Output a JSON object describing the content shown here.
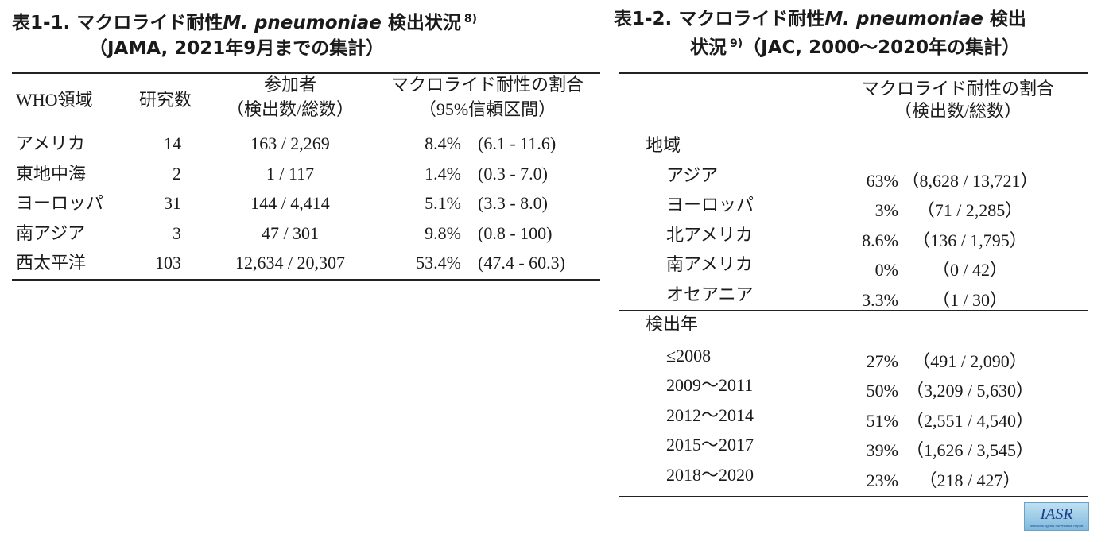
{
  "table1": {
    "title": {
      "label": "表1-1.",
      "text": "マクロライド耐性",
      "species": "M. pneumoniae",
      "text2": "検出状況",
      "ref": "8)",
      "source": "（JAMA, 2021年9月までの集計）"
    },
    "columns": [
      [
        "WHO領域"
      ],
      [
        "研究数"
      ],
      [
        "参加者",
        "（検出数/総数）"
      ],
      [
        "マクロライド耐性の割合",
        "（95%信頼区間）"
      ]
    ],
    "rows": [
      [
        "アメリカ",
        "14",
        "163 / 2,269",
        "8.4%",
        "(6.1 - 11.6)"
      ],
      [
        "東地中海",
        "2",
        "1 / 117",
        "1.4%",
        "(0.3 - 7.0)"
      ],
      [
        "ヨーロッパ",
        "31",
        "144 / 4,414",
        "5.1%",
        "(3.3 - 8.0)"
      ],
      [
        "南アジア",
        "3",
        "47 / 301",
        "9.8%",
        "(0.8 - 100)"
      ],
      [
        "西太平洋",
        "103",
        "12,634 / 20,307",
        "53.4%",
        "(47.4 - 60.3)"
      ]
    ]
  },
  "table2": {
    "title": {
      "label": "表1-2.",
      "text": "マクロライド耐性",
      "species": "M. pneumoniae",
      "text2": "検出",
      "text3": "状況",
      "ref": "9)",
      "source": "（JAC, 2000～2020年の集計）"
    },
    "columns": [
      "マクロライド耐性の割合",
      "（検出数/総数）"
    ],
    "groups": [
      {
        "name": "地域",
        "rows": [
          [
            "アジア",
            "63%",
            "（8,628 / 13,721）"
          ],
          [
            "ヨーロッパ",
            "3%",
            "（71 / 2,285）"
          ],
          [
            "北アメリカ",
            "8.6%",
            "（136 / 1,795）"
          ],
          [
            "南アメリカ",
            "0%",
            "（0 / 42）"
          ],
          [
            "オセアニア",
            "3.3%",
            "（1 / 30）"
          ]
        ]
      },
      {
        "name": "検出年",
        "rows": [
          [
            "≤2008",
            "27%",
            "（491 / 2,090）"
          ],
          [
            "2009～2011",
            "50%",
            "（3,209 / 5,630）"
          ],
          [
            "2012～2014",
            "51%",
            "（2,551 / 4,540）"
          ],
          [
            "2015～2017",
            "39%",
            "（1,626 / 3,545）"
          ],
          [
            "2018～2020",
            "23%",
            "（218 / 427）"
          ]
        ]
      }
    ]
  },
  "logo": {
    "name": "IASR",
    "subtitle": "Infectious Agents Surveillance Report"
  }
}
